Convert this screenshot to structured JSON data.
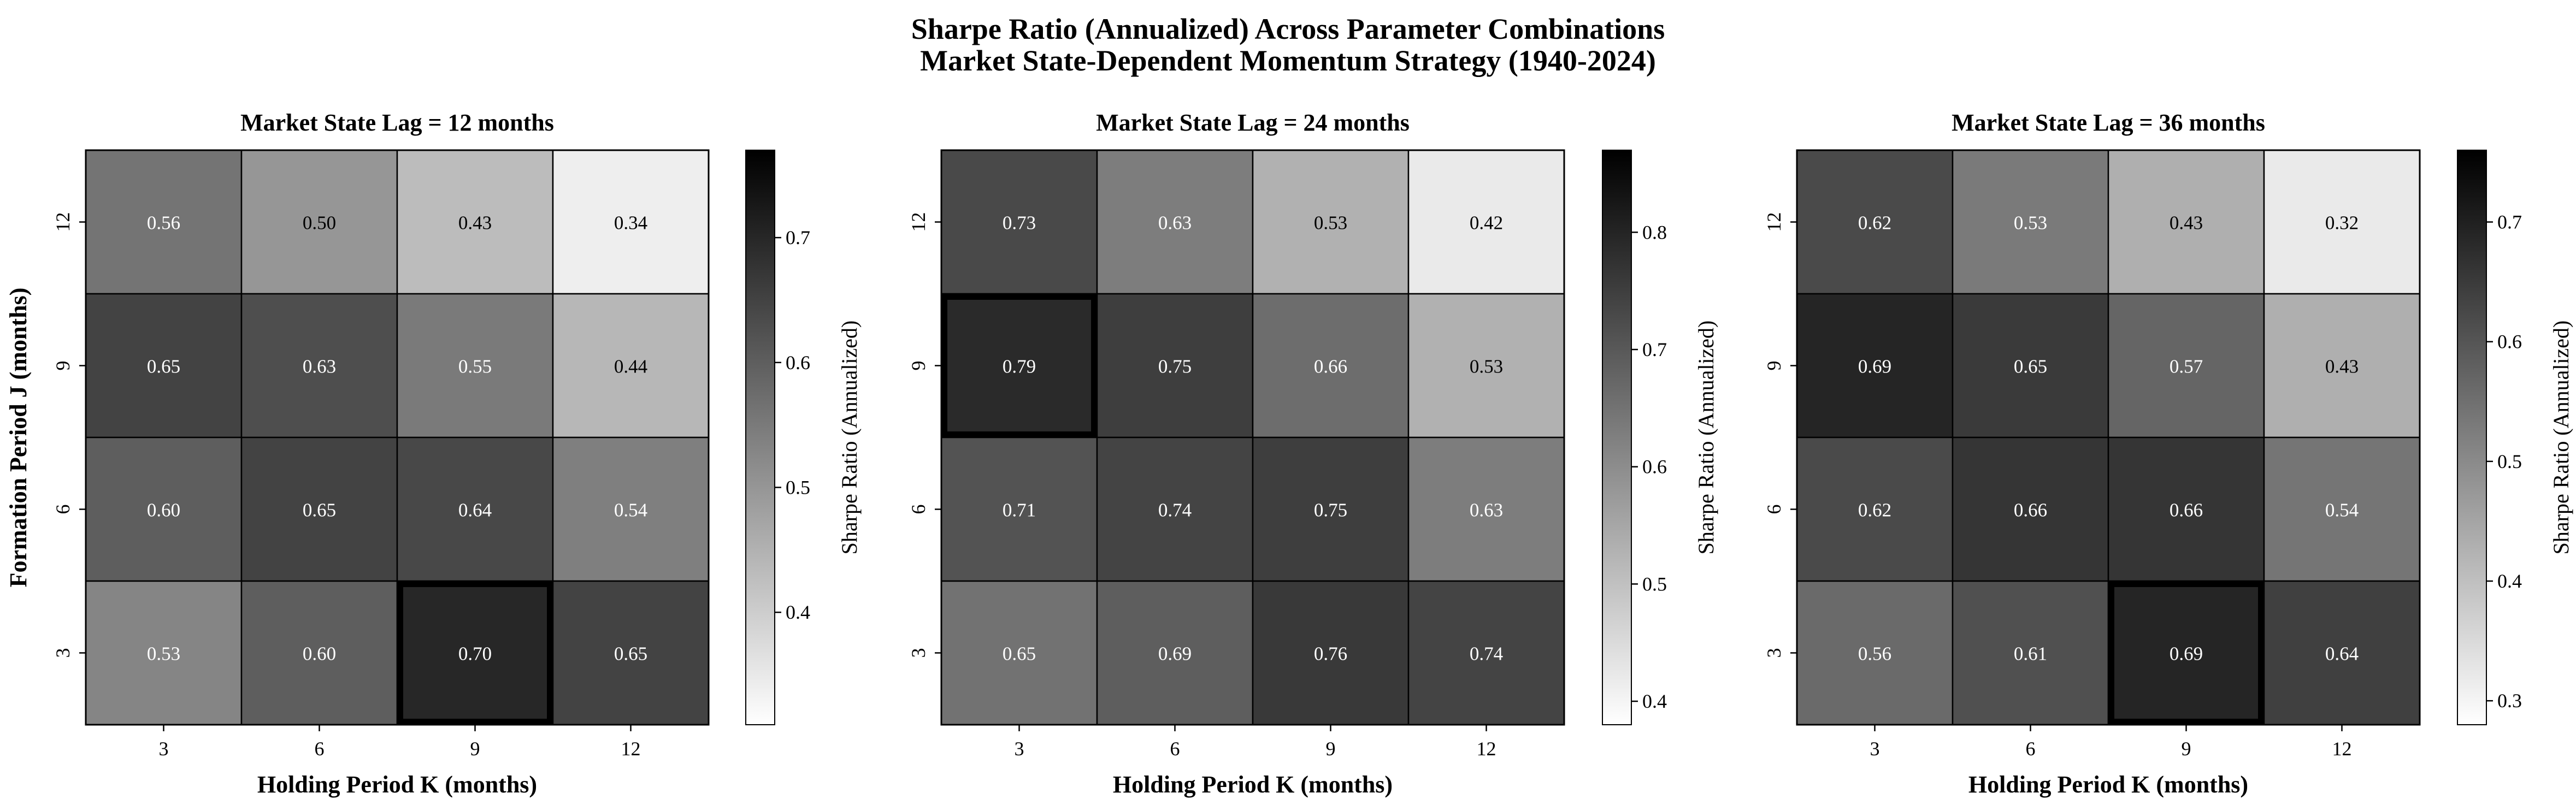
{
  "figure": {
    "suptitle_line1": "Sharpe Ratio (Annualized) Across Parameter Combinations",
    "suptitle_line2": "Market State-Dependent Momentum Strategy (1940-2024)"
  },
  "chart_data": [
    {
      "type": "heatmap",
      "title": "Market State Lag = 12 months",
      "xlabel": "Holding Period K (months)",
      "ylabel": "Formation Period J (months)",
      "x_categories": [
        "3",
        "6",
        "9",
        "12"
      ],
      "y_categories": [
        "12",
        "9",
        "6",
        "3"
      ],
      "values": [
        [
          0.56,
          0.5,
          0.43,
          0.34
        ],
        [
          0.65,
          0.63,
          0.55,
          0.44
        ],
        [
          0.6,
          0.65,
          0.64,
          0.54
        ],
        [
          0.53,
          0.6,
          0.7,
          0.65
        ]
      ],
      "highlight": {
        "row": 3,
        "col": 2
      },
      "colorbar": {
        "label": "Sharpe Ratio (Annualized)",
        "min": 0.31,
        "max": 0.77,
        "ticks": [
          0.4,
          0.5,
          0.6,
          0.7
        ]
      },
      "colormap": "Greys"
    },
    {
      "type": "heatmap",
      "title": "Market State Lag = 24 months",
      "xlabel": "Holding Period K (months)",
      "ylabel": "",
      "x_categories": [
        "3",
        "6",
        "9",
        "12"
      ],
      "y_categories": [
        "12",
        "9",
        "6",
        "3"
      ],
      "values": [
        [
          0.73,
          0.63,
          0.53,
          0.42
        ],
        [
          0.79,
          0.75,
          0.66,
          0.53
        ],
        [
          0.71,
          0.74,
          0.75,
          0.63
        ],
        [
          0.65,
          0.69,
          0.76,
          0.74
        ]
      ],
      "highlight": {
        "row": 1,
        "col": 0
      },
      "colorbar": {
        "label": "Sharpe Ratio (Annualized)",
        "min": 0.38,
        "max": 0.87,
        "ticks": [
          0.4,
          0.5,
          0.6,
          0.7,
          0.8
        ]
      },
      "colormap": "Greys"
    },
    {
      "type": "heatmap",
      "title": "Market State Lag = 36 months",
      "xlabel": "Holding Period K (months)",
      "ylabel": "",
      "x_categories": [
        "3",
        "6",
        "9",
        "12"
      ],
      "y_categories": [
        "12",
        "9",
        "6",
        "3"
      ],
      "values": [
        [
          0.62,
          0.53,
          0.43,
          0.32
        ],
        [
          0.69,
          0.65,
          0.57,
          0.43
        ],
        [
          0.62,
          0.66,
          0.66,
          0.54
        ],
        [
          0.56,
          0.61,
          0.69,
          0.64
        ]
      ],
      "highlight": {
        "row": 3,
        "col": 2
      },
      "colorbar": {
        "label": "Sharpe Ratio (Annualized)",
        "min": 0.28,
        "max": 0.76,
        "ticks": [
          0.3,
          0.4,
          0.5,
          0.6,
          0.7
        ]
      },
      "colormap": "Greys"
    }
  ]
}
